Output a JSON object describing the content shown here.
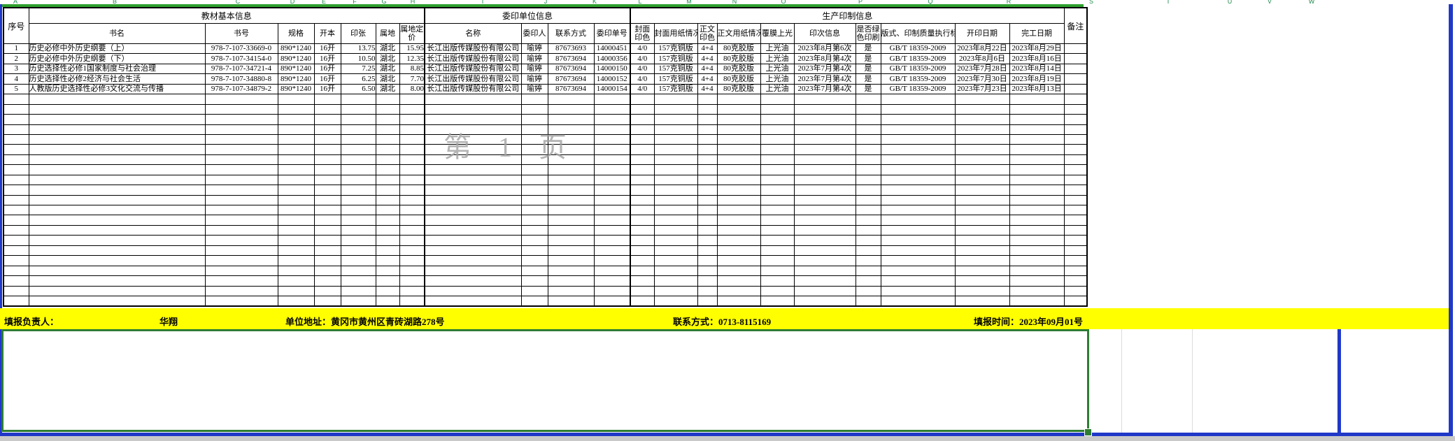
{
  "sheet": {
    "column_letters": [
      "A",
      "B",
      "C",
      "D",
      "E",
      "F",
      "G",
      "H",
      "I",
      "J",
      "K",
      "L",
      "M",
      "N",
      "O",
      "P",
      "Q",
      "R",
      "S",
      "T",
      "U",
      "V",
      "W"
    ],
    "watermark": "第 1 页",
    "table": {
      "corner_header": "序号",
      "remark_header": "备注",
      "groups": [
        {
          "label": "教材基本信息",
          "span": 7
        },
        {
          "label": "委印单位信息",
          "span": 4
        },
        {
          "label": "生产印制信息",
          "span": 10
        }
      ],
      "columns": [
        "书名",
        "书号",
        "规格",
        "开本",
        "印张",
        "属地",
        "属地定价",
        "名称",
        "委印人",
        "联系方式",
        "委印单号",
        "封面印色",
        "封面用纸情况",
        "正文印色",
        "正文用纸情况",
        "覆膜上光",
        "印次信息",
        "是否绿色印刷",
        "版式、印制质量执行标准",
        "开印日期",
        "完工日期"
      ],
      "rows": [
        [
          "1",
          "历史必修中外历史纲要（上）",
          "978-7-107-33669-0",
          "890*1240",
          "16开",
          "13.75",
          "湖北",
          "15.95",
          "长江出版传媒股份有限公司",
          "喻婷",
          "87673693",
          "14000451",
          "4/0",
          "157克铜版",
          "4+4",
          "80克胶版",
          "上光油",
          "2023年8月第6次",
          "是",
          "GB/T 18359-2009",
          "2023年8月22日",
          "2023年8月29日",
          ""
        ],
        [
          "2",
          "历史必修中外历史纲要（下）",
          "978-7-107-34154-0",
          "890*1240",
          "16开",
          "10.50",
          "湖北",
          "12.35",
          "长江出版传媒股份有限公司",
          "喻婷",
          "87673694",
          "14000356",
          "4/0",
          "157克铜版",
          "4+4",
          "80克胶版",
          "上光油",
          "2023年8月第4次",
          "是",
          "GB/T 18359-2009",
          "2023年8月6日",
          "2023年8月16日",
          ""
        ],
        [
          "3",
          "历史选择性必修1国家制度与社会治理",
          "978-7-107-34721-4",
          "890*1240",
          "16开",
          "7.25",
          "湖北",
          "8.85",
          "长江出版传媒股份有限公司",
          "喻婷",
          "87673694",
          "14000150",
          "4/0",
          "157克铜版",
          "4+4",
          "80克胶版",
          "上光油",
          "2023年7月第4次",
          "是",
          "GB/T 18359-2009",
          "2023年7月28日",
          "2023年8月14日",
          ""
        ],
        [
          "4",
          "历史选择性必修2经济与社会生活",
          "978-7-107-34880-8",
          "890*1240",
          "16开",
          "6.25",
          "湖北",
          "7.70",
          "长江出版传媒股份有限公司",
          "喻婷",
          "87673694",
          "14000152",
          "4/0",
          "157克铜版",
          "4+4",
          "80克胶版",
          "上光油",
          "2023年7月第4次",
          "是",
          "GB/T 18359-2009",
          "2023年7月30日",
          "2023年8月19日",
          ""
        ],
        [
          "5",
          "人教版历史选择性必修3文化交流与传播",
          "978-7-107-34879-2",
          "890*1240",
          "16开",
          "6.50",
          "湖北",
          "8.00",
          "长江出版传媒股份有限公司",
          "喻婷",
          "87673694",
          "14000154",
          "4/0",
          "157克铜版",
          "4+4",
          "80克胶版",
          "上光油",
          "2023年7月第4次",
          "是",
          "GB/T 18359-2009",
          "2023年7月23日",
          "2023年8月13日",
          ""
        ]
      ],
      "empty_row_count": 21
    },
    "footer": {
      "reporter_label": "填报负责人：",
      "reporter": "华翔",
      "address_label": "单位地址：",
      "address": "黄冈市黄州区青砖湖路278号",
      "contact_label": "联系方式：",
      "contact": "0713-8115169",
      "date_label": "填报时间：",
      "date": "2023年09月01号"
    },
    "colors": {
      "selection_green": "#2e7d32",
      "top_line_green": "#2ea02e",
      "page_break_blue": "#2038c8",
      "footer_yellow": "#ffff00",
      "column_letter_green": "#1f8a4c",
      "watermark_gray": "#a2a2a2"
    }
  }
}
